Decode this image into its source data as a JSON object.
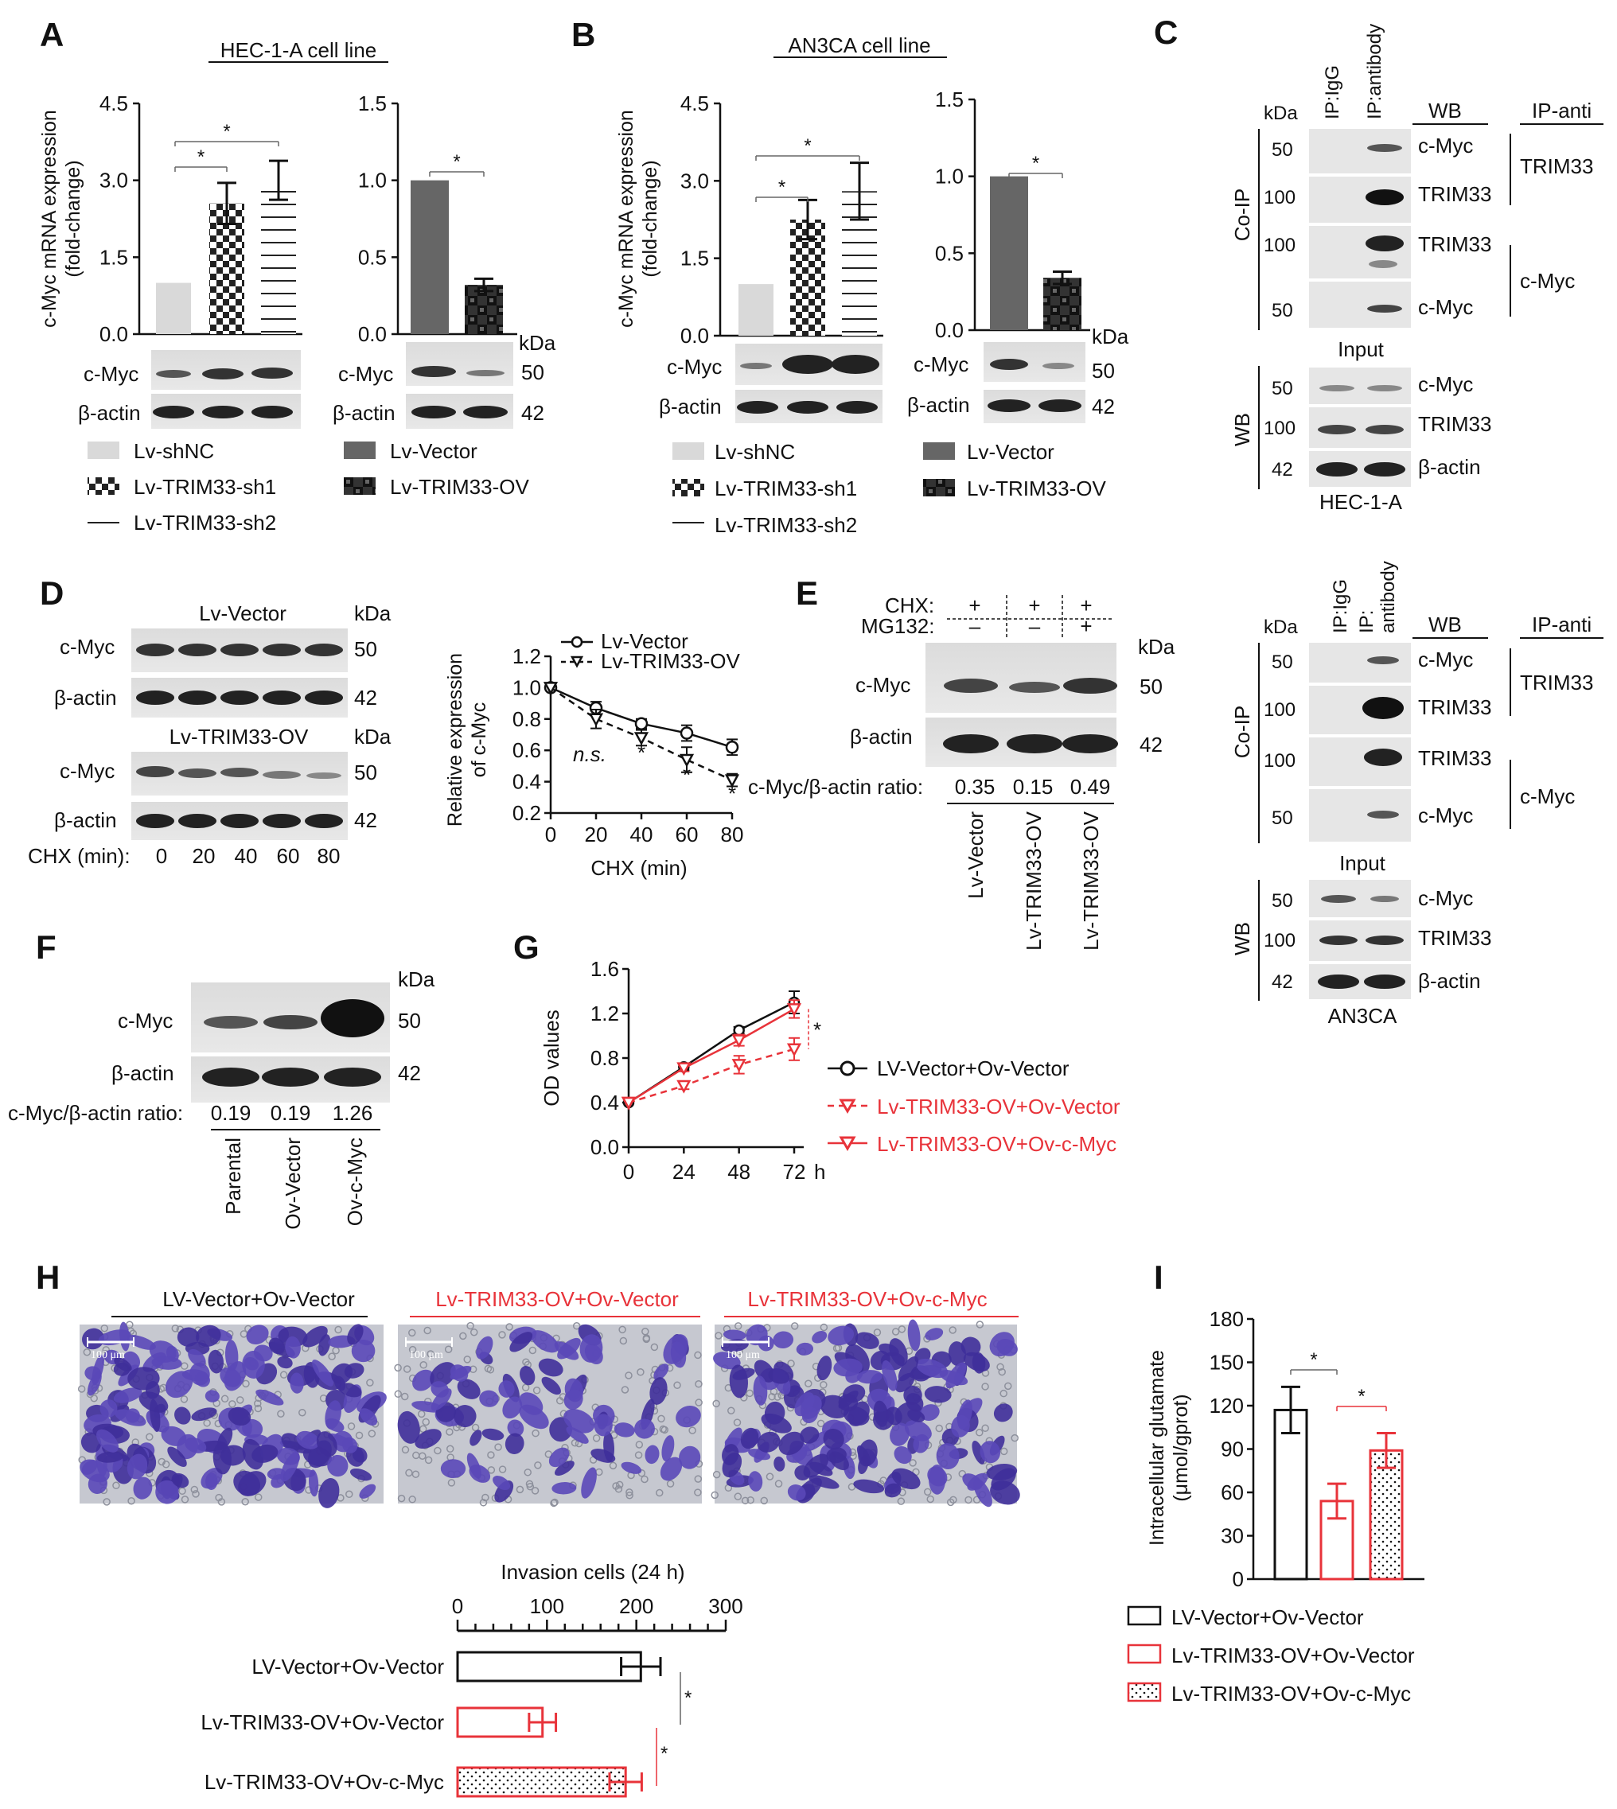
{
  "panels": {
    "A": {
      "letter": "A",
      "title": "HEC-1-A cell line",
      "ylabel_line1": "c-Myc mRNA expression",
      "ylabel_line2": "(fold-change)",
      "left_yticks": [
        "4.5",
        "3.0",
        "1.5",
        "0.0"
      ],
      "right_yticks": [
        "1.5",
        "1.0",
        "0.5",
        "0.0"
      ],
      "kda": "kDa",
      "blot_rows": [
        "c-Myc",
        "β-actin"
      ],
      "mw": [
        "50",
        "42"
      ],
      "legend_left": [
        "Lv-shNC",
        "Lv-TRIM33-sh1",
        "Lv-TRIM33-sh2"
      ],
      "legend_right": [
        "Lv-Vector",
        "Lv-TRIM33-OV"
      ],
      "star": "*"
    },
    "B": {
      "letter": "B",
      "title": "AN3CA cell line",
      "ylabel_line1": "c-Myc mRNA expression",
      "ylabel_line2": "(fold-change)",
      "left_yticks": [
        "4.5",
        "3.0",
        "1.5",
        "0.0"
      ],
      "right_yticks": [
        "1.5",
        "1.0",
        "0.5",
        "0.0"
      ],
      "kda": "kDa",
      "blot_rows": [
        "c-Myc",
        "β-actin"
      ],
      "mw": [
        "50",
        "42"
      ],
      "legend_left": [
        "Lv-shNC",
        "Lv-TRIM33-sh1",
        "Lv-TRIM33-sh2"
      ],
      "legend_right": [
        "Lv-Vector",
        "Lv-TRIM33-OV"
      ],
      "star": "*"
    },
    "C": {
      "letter": "C",
      "lane_labels": [
        "IP:IgG",
        "IP:antibody"
      ],
      "lane2_line1": "IP:",
      "lane2_line2": "antibody",
      "kda": "kDa",
      "wb": "WB",
      "ip_anti": "IP-anti",
      "coip": "Co-IP",
      "input": "Input",
      "mw_coip": [
        "50",
        "100",
        "100",
        "50"
      ],
      "bands_coip": [
        "c-Myc",
        "TRIM33",
        "TRIM33",
        "c-Myc"
      ],
      "ip_groups": [
        "TRIM33",
        "c-Myc"
      ],
      "mw_input": [
        "50",
        "100",
        "42"
      ],
      "bands_input": [
        "c-Myc",
        "TRIM33",
        "β-actin"
      ],
      "cell_top": "HEC-1-A",
      "cell_bottom": "AN3CA"
    },
    "D": {
      "letter": "D",
      "blot1_title": "Lv-Vector",
      "blot2_title": "Lv-TRIM33-OV",
      "kda": "kDa",
      "rows": [
        "c-Myc",
        "β-actin"
      ],
      "mw": [
        "50",
        "42"
      ],
      "chx_label": "CHX (min):",
      "chx_times": [
        "0",
        "20",
        "40",
        "60",
        "80"
      ],
      "ylabel_line1": "Relative expression",
      "ylabel_line2": "of c-Myc",
      "xlabel": "CHX (min)",
      "ns": "n.s.",
      "star": "*"
    },
    "E": {
      "letter": "E",
      "chx": "CHX:",
      "mg132": "MG132:",
      "chx_signs": [
        "+",
        "+",
        "+"
      ],
      "mg_signs": [
        "–",
        "–",
        "+"
      ],
      "kda": "kDa",
      "rows": [
        "c-Myc",
        "β-actin"
      ],
      "mw": [
        "50",
        "42"
      ],
      "ratio_label": "c-Myc/β-actin ratio:",
      "ratios": [
        "0.35",
        "0.15",
        "0.49"
      ],
      "lanes": [
        "Lv-Vector",
        "Lv-TRIM33-OV",
        "Lv-TRIM33-OV"
      ]
    },
    "F": {
      "letter": "F",
      "kda": "kDa",
      "rows": [
        "c-Myc",
        "β-actin"
      ],
      "mw": [
        "50",
        "42"
      ],
      "ratio_label": "c-Myc/β-actin ratio:",
      "ratios": [
        "0.19",
        "0.19",
        "1.26"
      ],
      "lanes": [
        "Parental",
        "Ov-Vector",
        "Ov-c-Myc"
      ]
    },
    "G": {
      "letter": "G",
      "ylabel": "OD values",
      "xunit": "h",
      "star": "*",
      "legend": [
        "LV-Vector+Ov-Vector",
        "Lv-TRIM33-OV+Ov-Vector",
        "Lv-TRIM33-OV+Ov-c-Myc"
      ]
    },
    "H": {
      "letter": "H",
      "image_titles": [
        "LV-Vector+Ov-Vector",
        "Lv-TRIM33-OV+Ov-Vector",
        "Lv-TRIM33-OV+Ov-c-Myc"
      ],
      "scale": "100 μm",
      "xlabel": "Invasion cells (24 h)",
      "star": "*"
    },
    "I": {
      "letter": "I",
      "ylabel_line1": "Intracellular glutamate",
      "ylabel_line2": "(μmol/gprot)",
      "star": "*",
      "legend": [
        "LV-Vector+Ov-Vector",
        "Lv-TRIM33-OV+Ov-Vector",
        "Lv-TRIM33-OV+Ov-c-Myc"
      ]
    }
  },
  "chart_data": [
    {
      "id": "A-left",
      "type": "bar",
      "categories": [
        "Lv-shNC",
        "Lv-TRIM33-sh1",
        "Lv-TRIM33-sh2"
      ],
      "values": [
        1.0,
        2.55,
        3.0
      ],
      "errors": [
        0,
        0.4,
        0.38
      ],
      "ylim": [
        0,
        4.5
      ],
      "ticks": [
        0,
        1.5,
        3.0,
        4.5
      ]
    },
    {
      "id": "A-right",
      "type": "bar",
      "categories": [
        "Lv-Vector",
        "Lv-TRIM33-OV"
      ],
      "values": [
        1.0,
        0.32
      ],
      "errors": [
        0,
        0.04
      ],
      "ylim": [
        0,
        1.5
      ],
      "ticks": [
        0,
        0.5,
        1.0,
        1.5
      ]
    },
    {
      "id": "B-left",
      "type": "bar",
      "categories": [
        "Lv-shNC",
        "Lv-TRIM33-sh1",
        "Lv-TRIM33-sh2"
      ],
      "values": [
        1.0,
        2.25,
        2.8
      ],
      "errors": [
        0,
        0.38,
        0.55
      ],
      "ylim": [
        0,
        4.5
      ],
      "ticks": [
        0,
        1.5,
        3.0,
        4.5
      ]
    },
    {
      "id": "B-right",
      "type": "bar",
      "categories": [
        "Lv-Vector",
        "Lv-TRIM33-OV"
      ],
      "values": [
        1.0,
        0.34
      ],
      "errors": [
        0,
        0.04
      ],
      "ylim": [
        0,
        1.5
      ],
      "ticks": [
        0,
        0.5,
        1.0,
        1.5
      ]
    },
    {
      "id": "D",
      "type": "line",
      "x": [
        0,
        20,
        40,
        60,
        80
      ],
      "ylim": [
        0.2,
        1.2
      ],
      "ticks_y": [
        0.2,
        0.4,
        0.6,
        0.8,
        1.0,
        1.2
      ],
      "series": [
        {
          "name": "Lv-Vector",
          "values": [
            1.0,
            0.87,
            0.77,
            0.71,
            0.62
          ],
          "errors": [
            0,
            0.04,
            0.03,
            0.05,
            0.05
          ]
        },
        {
          "name": "Lv-TRIM33-OV",
          "values": [
            1.0,
            0.8,
            0.68,
            0.54,
            0.41
          ],
          "errors": [
            0,
            0.06,
            0.05,
            0.08,
            0.04
          ]
        }
      ]
    },
    {
      "id": "G",
      "type": "line",
      "x": [
        0,
        24,
        48,
        72
      ],
      "ylim": [
        0,
        1.6
      ],
      "ticks_y": [
        0,
        0.4,
        0.8,
        1.2,
        1.6
      ],
      "series": [
        {
          "name": "LV-Vector+Ov-Vector",
          "values": [
            0.4,
            0.72,
            1.05,
            1.3
          ],
          "errors": [
            0,
            0.03,
            0.03,
            0.1
          ]
        },
        {
          "name": "Lv-TRIM33-OV+Ov-Vector",
          "values": [
            0.4,
            0.55,
            0.74,
            0.88
          ],
          "errors": [
            0,
            0.03,
            0.08,
            0.1
          ]
        },
        {
          "name": "Lv-TRIM33-OV+Ov-c-Myc",
          "values": [
            0.4,
            0.71,
            0.96,
            1.24
          ],
          "errors": [
            0,
            0.03,
            0.05,
            0.08
          ]
        }
      ]
    },
    {
      "id": "H",
      "type": "bar",
      "orientation": "horizontal",
      "categories": [
        "LV-Vector+Ov-Vector",
        "Lv-TRIM33-OV+Ov-Vector",
        "Lv-TRIM33-OV+Ov-c-Myc"
      ],
      "values": [
        205,
        95,
        188
      ],
      "errors": [
        22,
        15,
        18
      ],
      "xlim": [
        0,
        300
      ],
      "ticks": [
        0,
        100,
        200,
        300
      ]
    },
    {
      "id": "I",
      "type": "bar",
      "categories": [
        "LV-Vector+Ov-Vector",
        "Lv-TRIM33-OV+Ov-Vector",
        "Lv-TRIM33-OV+Ov-c-Myc"
      ],
      "values": [
        117,
        54,
        89
      ],
      "errors": [
        16,
        12,
        12
      ],
      "ylim": [
        0,
        180
      ],
      "ticks": [
        0,
        30,
        60,
        90,
        120,
        150,
        180
      ]
    }
  ],
  "colors": {
    "red": "#e8333a",
    "black": "#111111",
    "dark_gray": "#666666",
    "light_gray": "#d9d9d9",
    "cell_stain": "#4a3aa6",
    "membrane": "#c9ccd4"
  }
}
